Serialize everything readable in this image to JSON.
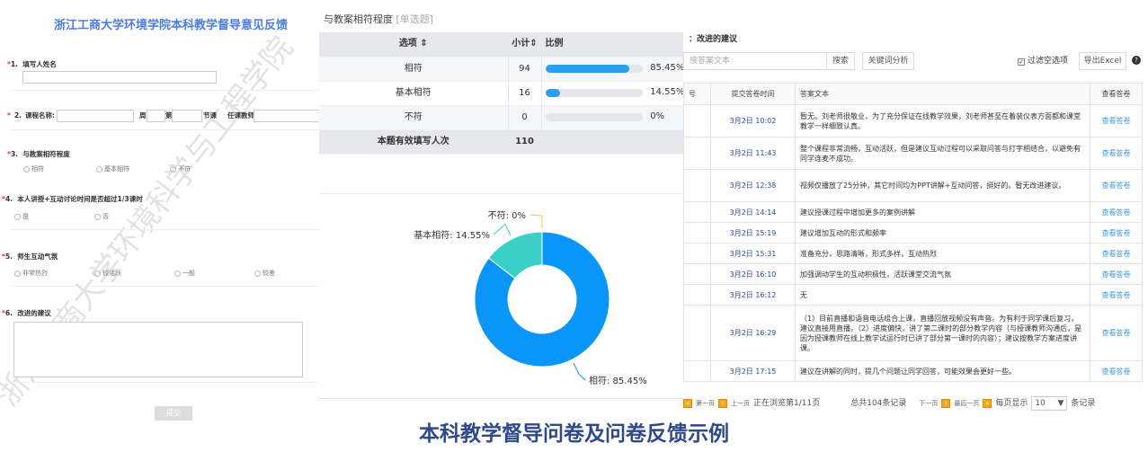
{
  "form": {
    "title": "浙江工商大学环境学院本科教学督导意见反馈",
    "q1": {
      "num": "1.",
      "label": "填写人姓名"
    },
    "q2": {
      "num": "2.",
      "label": "课程名称:",
      "week": "周",
      "no": "第",
      "section": "节课",
      "teacher": "任课教师"
    },
    "q3": {
      "num": "3.",
      "label": "与教案相符程度",
      "options": [
        "相符",
        "基本相符",
        "不符"
      ]
    },
    "q4": {
      "num": "4.",
      "label": "本人讲授+互动讨论时间是否超过1/3课时",
      "options": [
        "是",
        "否"
      ]
    },
    "q5": {
      "num": "5.",
      "label": "师生互动气氛",
      "options": [
        "非常热烈",
        "较活跃",
        "一般",
        "较差"
      ]
    },
    "q6": {
      "num": "6.",
      "label": "改进的建议"
    },
    "submit": "提交",
    "watermark": "浙江工商大学环境科学与工程学院"
  },
  "stats": {
    "title": "与教案相符程度",
    "type": "[单选题]",
    "headers": [
      "选项",
      "小计",
      "比例"
    ],
    "rows": [
      {
        "option": "相符",
        "count": "94",
        "pct": "85.45%",
        "value": 85.45
      },
      {
        "option": "基本相符",
        "count": "16",
        "pct": "14.55%",
        "value": 14.55
      },
      {
        "option": "不符",
        "count": "0",
        "pct": "0%",
        "value": 0
      }
    ],
    "total_label": "本题有效填写人次",
    "total": "110"
  },
  "chart_data": {
    "type": "pie",
    "donut": true,
    "categories": [
      "相符",
      "基本相符",
      "不符"
    ],
    "values": [
      85.45,
      14.55,
      0
    ],
    "labels": [
      "相符: 85.45%",
      "基本相符: 14.55%",
      "不符: 0%"
    ],
    "colors": [
      "#0a96f8",
      "#3ad0c8",
      "#f5c542"
    ]
  },
  "answers": {
    "title": "：改进的建议",
    "search_placeholder": "搜答案文本",
    "search": "搜索",
    "keyword": "关键词分析",
    "filter": "过滤空选项",
    "export": "导出Excel",
    "help": "?",
    "headers": [
      "号",
      "提交答卷时间",
      "答案文本",
      "查看答卷"
    ],
    "rows": [
      {
        "time": "3月2日 10:02",
        "text": "暂无。刘老师很敬业，为了充分保证在线教学效果，刘老师甚至在着装仪表方面都和课堂教学一样细致认真。"
      },
      {
        "time": "3月2日 11:43",
        "text": "整个课程非常流畅，互动活跃，但是建议互动过程可以采取问答与打字相结合，以避免有同学连麦不成功。"
      },
      {
        "time": "3月2日 12:38",
        "text": "视频仅播放了25分钟，其它时间均为PPT讲解+互动问答，挺好的。暂无改进建议。"
      },
      {
        "time": "3月2日 14:14",
        "text": "建议授课过程中增加更多的案例讲解"
      },
      {
        "time": "3月2日 15:19",
        "text": "建议增加互动的形式和频率"
      },
      {
        "time": "3月2日 15:31",
        "text": "准备充分，思路清晰，形式多样，互动热烈"
      },
      {
        "time": "3月2日 16:10",
        "text": "加强调动学生的互动积极性，活跃课堂交流气氛"
      },
      {
        "time": "3月2日 16:12",
        "text": "无"
      },
      {
        "time": "3月2日 16:29",
        "text": "（1）目前直播和语音电话组合上课，直播回放视频没有声音。为有利于同学课后复习，建议直接用直播。（2）进度偏快，讲了第二课时的部分教学内容（与授课教师沟通后，是因为授课教师在线上教学试运行时已讲了部分第一课时的内容）；建议按教学方案进度讲课。"
      },
      {
        "time": "3月2日 17:15",
        "text": "建议在讲解的同时，提几个问题让同学回答，可能效果会更好一些。"
      }
    ],
    "view_label": "查看答卷",
    "pager": {
      "first": "第一页",
      "prev": "上一页",
      "status": "正在浏览第1/11页",
      "total": "总共104条记录",
      "next": "下一页",
      "last": "最后一页",
      "per_page": "每页显示",
      "per_value": "10",
      "unit": "条记录"
    }
  },
  "caption": "本科教学督导问卷及问卷反馈示例"
}
